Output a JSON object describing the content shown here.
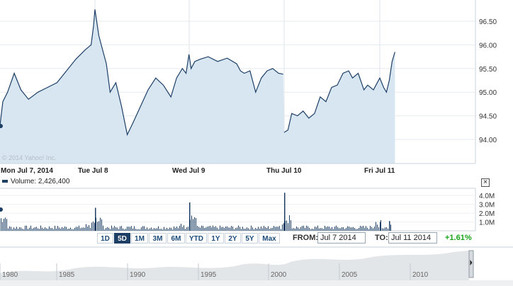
{
  "chart": {
    "copyright": "© 2014 Yahoo! Inc.",
    "y_axis_labels": [
      "96.50",
      "96.00",
      "95.50",
      "95.00",
      "94.50",
      "94.00"
    ],
    "x_axis_labels": [
      "Mon Jul 7, 2014",
      "Tue Jul 8",
      "Wed Jul 9",
      "Thu Jul 10",
      "Fri Jul 11"
    ],
    "line_color": "#1d3f66",
    "fill_color": "#d7e6f1"
  },
  "volume": {
    "header": "Volume: 2,426,400",
    "y_axis_labels": [
      "4.0M",
      "3.0M",
      "2.0M",
      "1.0M"
    ]
  },
  "controls": {
    "ranges": [
      "1D",
      "5D",
      "1M",
      "3M",
      "6M",
      "YTD",
      "1Y",
      "2Y",
      "5Y",
      "Max"
    ],
    "active_range": "5D",
    "from_label": "FROM:",
    "from_value": "Jul 7 2014",
    "to_label": "TO:",
    "to_value": "Jul 11 2014",
    "change": "+1.61%"
  },
  "navigator": {
    "year_labels": [
      "1980",
      "1985",
      "1990",
      "1995",
      "2000",
      "2005",
      "2010"
    ]
  },
  "chart_data": {
    "type": "area",
    "series": [
      {
        "values": [
          [
            0.0,
            94.3
          ],
          [
            0.03,
            94.8
          ],
          [
            0.08,
            95.0
          ],
          [
            0.15,
            95.4
          ],
          [
            0.22,
            95.05
          ],
          [
            0.3,
            94.85
          ],
          [
            0.4,
            95.0
          ],
          [
            0.5,
            95.1
          ],
          [
            0.6,
            95.2
          ],
          [
            0.7,
            95.45
          ],
          [
            0.8,
            95.7
          ],
          [
            0.9,
            95.9
          ],
          [
            0.96,
            96.0
          ],
          [
            0.985,
            96.4
          ],
          [
            1.0,
            96.75
          ],
          [
            1.04,
            96.2
          ],
          [
            1.08,
            95.9
          ],
          [
            1.12,
            95.6
          ],
          [
            1.16,
            95.0
          ],
          [
            1.22,
            95.2
          ],
          [
            1.28,
            94.7
          ],
          [
            1.34,
            94.1
          ],
          [
            1.4,
            94.35
          ],
          [
            1.48,
            94.7
          ],
          [
            1.56,
            95.05
          ],
          [
            1.64,
            95.3
          ],
          [
            1.72,
            95.15
          ],
          [
            1.8,
            94.9
          ],
          [
            1.86,
            95.3
          ],
          [
            1.92,
            95.5
          ],
          [
            1.96,
            95.4
          ],
          [
            1.99,
            95.8
          ],
          [
            2.02,
            95.5
          ],
          [
            2.06,
            95.65
          ],
          [
            2.12,
            95.7
          ],
          [
            2.2,
            95.75
          ],
          [
            2.3,
            95.65
          ],
          [
            2.4,
            95.72
          ],
          [
            2.5,
            95.6
          ],
          [
            2.54,
            95.45
          ],
          [
            2.58,
            95.4
          ],
          [
            2.64,
            95.45
          ],
          [
            2.7,
            95.0
          ],
          [
            2.76,
            95.3
          ],
          [
            2.82,
            95.45
          ],
          [
            2.88,
            95.5
          ],
          [
            2.94,
            95.4
          ],
          [
            2.99,
            95.38
          ],
          [
            3.0,
            94.15
          ],
          [
            3.04,
            94.2
          ],
          [
            3.08,
            94.55
          ],
          [
            3.14,
            94.5
          ],
          [
            3.2,
            94.6
          ],
          [
            3.26,
            94.45
          ],
          [
            3.32,
            94.55
          ],
          [
            3.38,
            94.9
          ],
          [
            3.44,
            94.8
          ],
          [
            3.5,
            95.1
          ],
          [
            3.56,
            95.15
          ],
          [
            3.62,
            95.4
          ],
          [
            3.68,
            95.45
          ],
          [
            3.72,
            95.3
          ],
          [
            3.78,
            95.4
          ],
          [
            3.84,
            95.05
          ],
          [
            3.88,
            95.15
          ],
          [
            3.94,
            95.05
          ],
          [
            4.0,
            95.3
          ],
          [
            4.04,
            95.1
          ],
          [
            4.07,
            95.0
          ],
          [
            4.1,
            95.25
          ],
          [
            4.13,
            95.65
          ],
          [
            4.16,
            95.85
          ]
        ]
      }
    ],
    "ylim": [
      93.75,
      96.85
    ]
  }
}
